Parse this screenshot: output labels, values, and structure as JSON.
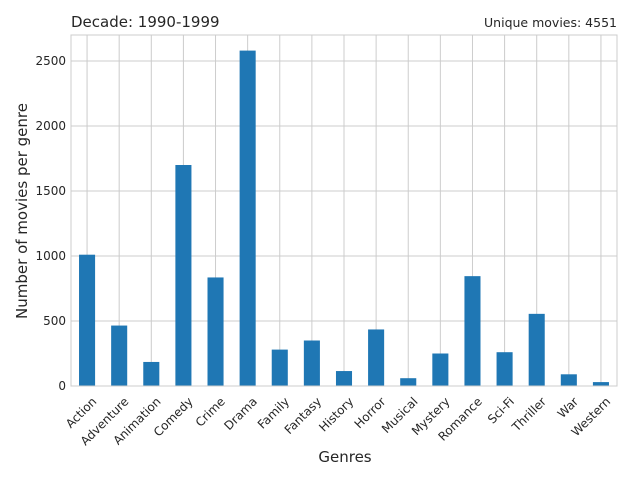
{
  "chart_data": {
    "type": "bar",
    "title": "Decade: 1990-1999",
    "subtitle": "Unique movies: 4551",
    "xlabel": "Genres",
    "ylabel": "Number of movies per genre",
    "ylim": [
      0,
      2700
    ],
    "yticks": [
      0,
      500,
      1000,
      1500,
      2000,
      2500
    ],
    "grid": true,
    "bar_color": "#1f77b4",
    "grid_color": "#cccccc",
    "categories": [
      "Action",
      "Adventure",
      "Animation",
      "Comedy",
      "Crime",
      "Drama",
      "Family",
      "Fantasy",
      "History",
      "Horror",
      "Musical",
      "Mystery",
      "Romance",
      "Sci-Fi",
      "Thriller",
      "War",
      "Western"
    ],
    "values": [
      1010,
      465,
      185,
      1700,
      835,
      2580,
      280,
      350,
      115,
      435,
      60,
      250,
      845,
      260,
      555,
      90,
      30
    ]
  }
}
